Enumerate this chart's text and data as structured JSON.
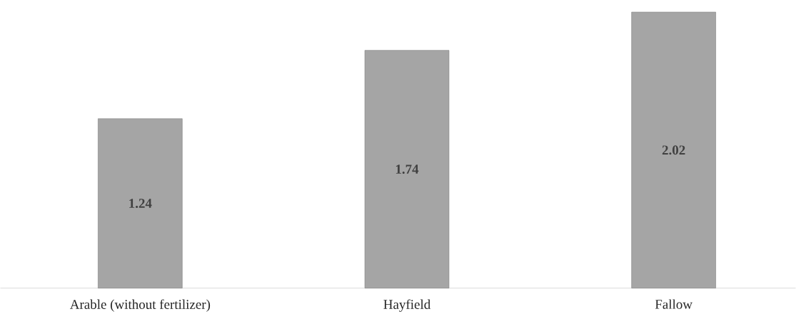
{
  "chart_data": {
    "type": "bar",
    "categories": [
      "Arable (without fertilizer)",
      "Hayfield",
      "Fallow"
    ],
    "values": [
      1.24,
      1.74,
      2.02
    ],
    "color": "#a5a5a5",
    "data_labels": true
  }
}
